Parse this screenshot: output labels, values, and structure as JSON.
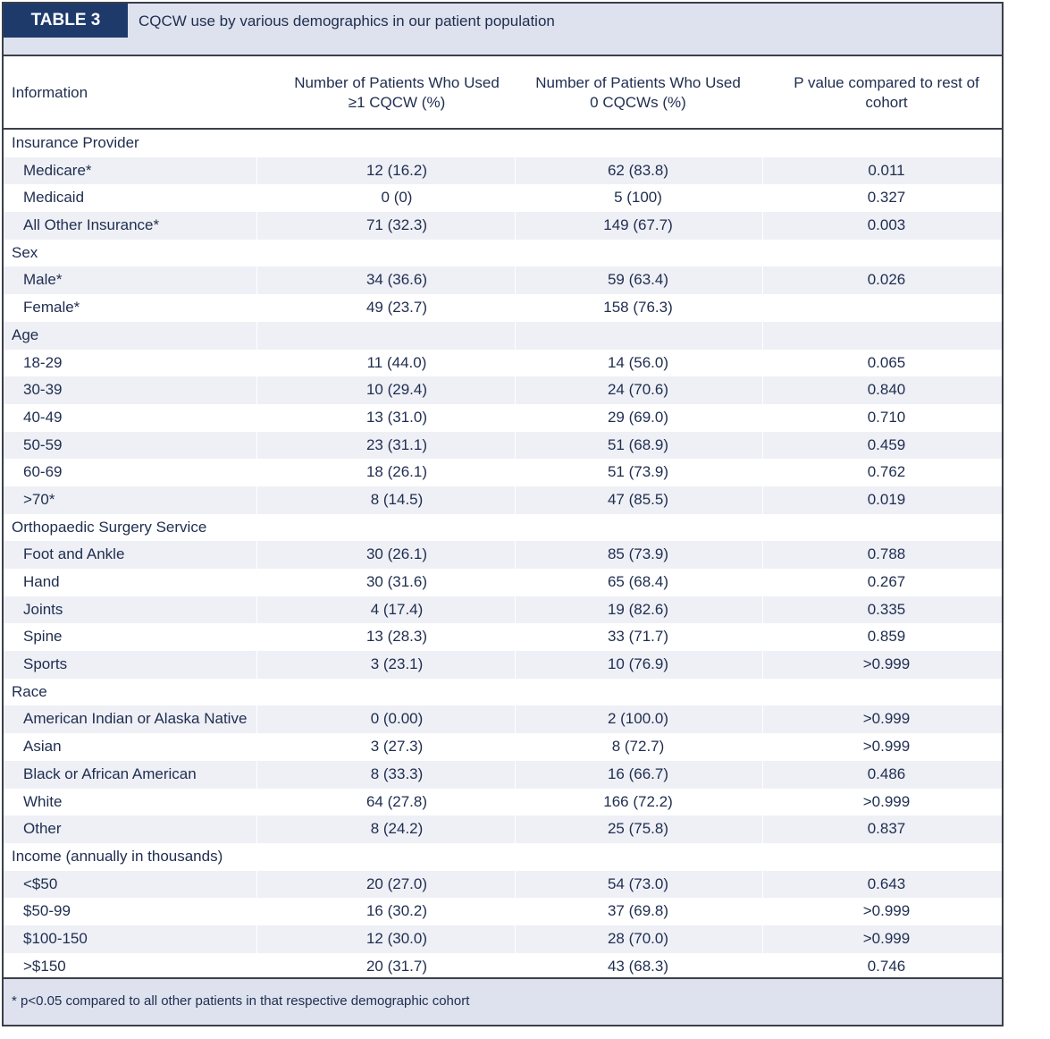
{
  "table_label": "TABLE 3",
  "caption": "CQCW use by various demographics in our patient population",
  "headers": [
    "Information",
    "Number of Patients Who Used ≥1 CQCW (%)",
    "Number of Patients Who Used 0 CQCWs (%)",
    "P value compared to rest of cohort"
  ],
  "header_lines": {
    "col1": [
      "Number of Patients Who Used",
      "≥1 CQCW (%)"
    ],
    "col2": [
      "Number of Patients Who Used",
      "0 CQCWs (%)"
    ],
    "col3": [
      "P value compared to rest of",
      "cohort"
    ]
  },
  "rows": [
    {
      "type": "group",
      "label": "Insurance Provider"
    },
    {
      "type": "item",
      "label": "Medicare*",
      "used": "12 (16.2)",
      "unused": "62 (83.8)",
      "p": "0.011"
    },
    {
      "type": "item",
      "label": "Medicaid",
      "used": "0 (0)",
      "unused": "5 (100)",
      "p": "0.327"
    },
    {
      "type": "item",
      "label": "All Other Insurance*",
      "used": "71 (32.3)",
      "unused": "149 (67.7)",
      "p": "0.003"
    },
    {
      "type": "group",
      "label": "Sex"
    },
    {
      "type": "item",
      "label": "Male*",
      "used": "34 (36.6)",
      "unused": "59 (63.4)",
      "p": "0.026"
    },
    {
      "type": "item",
      "label": "Female*",
      "used": "49 (23.7)",
      "unused": "158 (76.3)",
      "p": ""
    },
    {
      "type": "group",
      "label": "Age"
    },
    {
      "type": "item",
      "label": "18-29",
      "used": "11 (44.0)",
      "unused": "14 (56.0)",
      "p": "0.065"
    },
    {
      "type": "item",
      "label": "30-39",
      "used": "10 (29.4)",
      "unused": "24 (70.6)",
      "p": "0.840"
    },
    {
      "type": "item",
      "label": "40-49",
      "used": "13 (31.0)",
      "unused": "29 (69.0)",
      "p": "0.710"
    },
    {
      "type": "item",
      "label": "50-59",
      "used": "23 (31.1)",
      "unused": "51 (68.9)",
      "p": "0.459"
    },
    {
      "type": "item",
      "label": "60-69",
      "used": "18 (26.1)",
      "unused": "51 (73.9)",
      "p": "0.762"
    },
    {
      "type": "item",
      "label": ">70*",
      "used": "8 (14.5)",
      "unused": "47 (85.5)",
      "p": "0.019"
    },
    {
      "type": "group",
      "label": "Orthopaedic Surgery Service"
    },
    {
      "type": "item",
      "label": "Foot and Ankle",
      "used": "30 (26.1)",
      "unused": "85 (73.9)",
      "p": "0.788"
    },
    {
      "type": "item",
      "label": "Hand",
      "used": "30 (31.6)",
      "unused": "65 (68.4)",
      "p": "0.267"
    },
    {
      "type": "item",
      "label": "Joints",
      "used": "4 (17.4)",
      "unused": "19 (82.6)",
      "p": "0.335"
    },
    {
      "type": "item",
      "label": "Spine",
      "used": "13 (28.3)",
      "unused": "33 (71.7)",
      "p": "0.859"
    },
    {
      "type": "item",
      "label": "Sports",
      "used": "3 (23.1)",
      "unused": "10 (76.9)",
      "p": ">0.999"
    },
    {
      "type": "group",
      "label": "Race"
    },
    {
      "type": "item",
      "label": "American Indian or Alaska Native",
      "used": "0 (0.00)",
      "unused": "2 (100.0)",
      "p": ">0.999"
    },
    {
      "type": "item",
      "label": "Asian",
      "used": "3 (27.3)",
      "unused": "8 (72.7)",
      "p": ">0.999"
    },
    {
      "type": "item",
      "label": "Black or African American",
      "used": "8 (33.3)",
      "unused": "16 (66.7)",
      "p": "0.486"
    },
    {
      "type": "item",
      "label": "White",
      "used": "64 (27.8)",
      "unused": "166 (72.2)",
      "p": ">0.999"
    },
    {
      "type": "item",
      "label": "Other",
      "used": "8 (24.2)",
      "unused": "25 (75.8)",
      "p": "0.837"
    },
    {
      "type": "group",
      "label": "Income (annually in thousands)"
    },
    {
      "type": "item",
      "label": "<$50",
      "used": "20 (27.0)",
      "unused": "54 (73.0)",
      "p": "0.643"
    },
    {
      "type": "item",
      "label": "$50-99",
      "used": "16 (30.2)",
      "unused": "37 (69.8)",
      "p": ">0.999"
    },
    {
      "type": "item",
      "label": "$100-150",
      "used": "12 (30.0)",
      "unused": "28 (70.0)",
      "p": ">0.999"
    },
    {
      "type": "item",
      "label": ">$150",
      "used": "20 (31.7)",
      "unused": "43 (68.3)",
      "p": "0.746"
    }
  ],
  "footnote": "* p<0.05 compared to all other patients in that respective demographic cohort",
  "colors": {
    "label_bg": "#1d3a6b",
    "header_band": "#dde2ee",
    "alt_row": "#eef0f6",
    "text": "#1f2d4f"
  }
}
